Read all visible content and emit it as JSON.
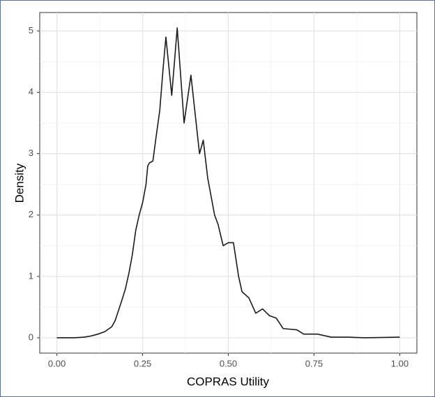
{
  "chart_data": {
    "type": "line",
    "x_label": "COPRAS Utility",
    "y_label": "Density",
    "xlim": [
      -0.05,
      1.05
    ],
    "ylim": [
      -0.25,
      5.3
    ],
    "xticks": [
      {
        "value": 0,
        "label": "0.00"
      },
      {
        "value": 0.25,
        "label": "0.25"
      },
      {
        "value": 0.5,
        "label": "0.50"
      },
      {
        "value": 0.75,
        "label": "0.75"
      },
      {
        "value": 1,
        "label": "1.00"
      }
    ],
    "yticks": [
      0,
      1,
      2,
      3,
      4,
      5
    ],
    "grid": true,
    "minor_grid": true,
    "color": "#1a1a1a",
    "x": [
      0,
      0.05,
      0.08,
      0.1,
      0.12,
      0.14,
      0.16,
      0.17,
      0.18,
      0.19,
      0.2,
      0.21,
      0.22,
      0.23,
      0.24,
      0.25,
      0.26,
      0.265,
      0.27,
      0.28,
      0.29,
      0.3,
      0.31,
      0.318,
      0.335,
      0.351,
      0.371,
      0.391,
      0.416,
      0.427,
      0.44,
      0.46,
      0.47,
      0.485,
      0.5,
      0.515,
      0.53,
      0.54,
      0.56,
      0.58,
      0.6,
      0.62,
      0.64,
      0.66,
      0.68,
      0.7,
      0.72,
      0.76,
      0.8,
      0.85,
      0.9,
      1
    ],
    "values": [
      0,
      0,
      0.01,
      0.03,
      0.06,
      0.1,
      0.18,
      0.28,
      0.45,
      0.62,
      0.8,
      1.05,
      1.35,
      1.75,
      2,
      2.2,
      2.5,
      2.8,
      2.85,
      2.88,
      3.3,
      3.7,
      4.4,
      4.9,
      3.95,
      5.05,
      3.5,
      4.28,
      3,
      3.22,
      2.6,
      2,
      1.85,
      1.5,
      1.55,
      1.55,
      1,
      0.75,
      0.65,
      0.4,
      0.47,
      0.36,
      0.32,
      0.15,
      0.14,
      0.13,
      0.06,
      0.06,
      0.01,
      0.01,
      0,
      0.01
    ]
  }
}
